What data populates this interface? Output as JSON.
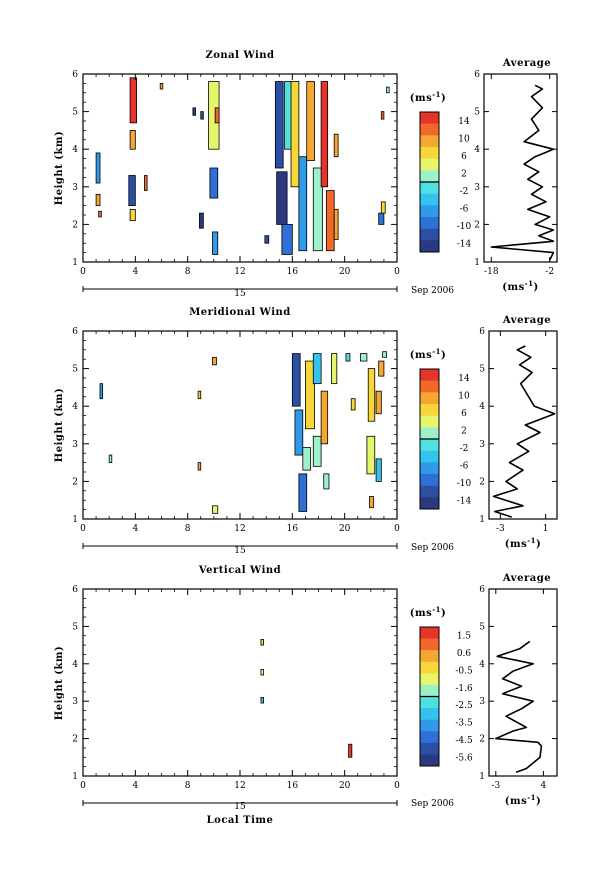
{
  "chart_data": [
    {
      "type": "heatmap",
      "title": "Zonal Wind",
      "ylabel": "Height (km)",
      "xlabel": "",
      "xlim": [
        0,
        24
      ],
      "ylim": [
        1,
        6
      ],
      "xticks": [
        "0",
        "4",
        "8",
        "12",
        "16",
        "20",
        "0"
      ],
      "yticks": [
        "1",
        "2",
        "3",
        "4",
        "5",
        "6"
      ],
      "date_label": "15",
      "month_label": "Sep 2006",
      "colorbar": {
        "unit": "(ms",
        "unit_sup": "-1",
        "ticks": [
          "14",
          "10",
          "6",
          "2",
          "-2",
          "-6",
          "-10",
          "-14"
        ],
        "range": [
          -16,
          16
        ]
      },
      "average_panel": {
        "title": "Average",
        "xlabel": "(ms",
        "xlabel_sup": "-1",
        "xticks": [
          "-18",
          "-2"
        ],
        "xlim": [
          -20,
          0
        ],
        "profile": [
          {
            "h": 1.05,
            "v": -2
          },
          {
            "h": 1.25,
            "v": -1
          },
          {
            "h": 1.4,
            "v": -18
          },
          {
            "h": 1.55,
            "v": -1
          },
          {
            "h": 1.7,
            "v": -5
          },
          {
            "h": 1.85,
            "v": -1
          },
          {
            "h": 2.0,
            "v": -6
          },
          {
            "h": 2.2,
            "v": -2
          },
          {
            "h": 2.4,
            "v": -8
          },
          {
            "h": 2.6,
            "v": -3
          },
          {
            "h": 2.8,
            "v": -7
          },
          {
            "h": 3.0,
            "v": -4
          },
          {
            "h": 3.2,
            "v": -8
          },
          {
            "h": 3.4,
            "v": -5
          },
          {
            "h": 3.6,
            "v": -9
          },
          {
            "h": 3.8,
            "v": -6
          },
          {
            "h": 4.0,
            "v": -1
          },
          {
            "h": 4.2,
            "v": -9
          },
          {
            "h": 4.5,
            "v": -5
          },
          {
            "h": 4.8,
            "v": -7
          },
          {
            "h": 5.1,
            "v": -4
          },
          {
            "h": 5.4,
            "v": -7
          },
          {
            "h": 5.6,
            "v": -4
          },
          {
            "h": 5.7,
            "v": -6
          }
        ]
      },
      "cells": [
        {
          "x": 1.0,
          "y": 3.1,
          "w": 0.3,
          "h": 0.8,
          "v": -6
        },
        {
          "x": 1.0,
          "y": 2.5,
          "w": 0.3,
          "h": 0.3,
          "v": 8
        },
        {
          "x": 1.2,
          "y": 2.2,
          "w": 0.2,
          "h": 0.15,
          "v": 12
        },
        {
          "x": 3.6,
          "y": 4.7,
          "w": 0.5,
          "h": 1.2,
          "v": 14
        },
        {
          "x": 3.6,
          "y": 4.0,
          "w": 0.4,
          "h": 0.5,
          "v": 10
        },
        {
          "x": 3.5,
          "y": 2.5,
          "w": 0.5,
          "h": 0.8,
          "v": -12
        },
        {
          "x": 3.6,
          "y": 2.1,
          "w": 0.4,
          "h": 0.3,
          "v": 6
        },
        {
          "x": 4.7,
          "y": 2.9,
          "w": 0.2,
          "h": 0.4,
          "v": 12
        },
        {
          "x": 5.9,
          "y": 5.6,
          "w": 0.2,
          "h": 0.15,
          "v": 8
        },
        {
          "x": 8.4,
          "y": 4.9,
          "w": 0.2,
          "h": 0.2,
          "v": -14
        },
        {
          "x": 9.0,
          "y": 4.8,
          "w": 0.2,
          "h": 0.2,
          "v": -12
        },
        {
          "x": 9.6,
          "y": 4.0,
          "w": 0.8,
          "h": 1.8,
          "v": 4
        },
        {
          "x": 9.7,
          "y": 2.7,
          "w": 0.6,
          "h": 0.8,
          "v": -10
        },
        {
          "x": 8.9,
          "y": 1.9,
          "w": 0.3,
          "h": 0.4,
          "v": -14
        },
        {
          "x": 9.9,
          "y": 1.2,
          "w": 0.4,
          "h": 0.6,
          "v": -8
        },
        {
          "x": 10.1,
          "y": 4.7,
          "w": 0.3,
          "h": 0.4,
          "v": 12
        },
        {
          "x": 13.9,
          "y": 1.5,
          "w": 0.3,
          "h": 0.2,
          "v": -12
        },
        {
          "x": 14.7,
          "y": 3.5,
          "w": 0.6,
          "h": 2.3,
          "v": -12
        },
        {
          "x": 14.8,
          "y": 2.0,
          "w": 0.8,
          "h": 1.4,
          "v": -14
        },
        {
          "x": 15.2,
          "y": 1.2,
          "w": 0.8,
          "h": 0.8,
          "v": -10
        },
        {
          "x": 15.4,
          "y": 4.0,
          "w": 0.6,
          "h": 1.8,
          "v": -2
        },
        {
          "x": 15.9,
          "y": 3.0,
          "w": 0.6,
          "h": 2.8,
          "v": 6
        },
        {
          "x": 16.5,
          "y": 1.3,
          "w": 0.6,
          "h": 2.5,
          "v": -6
        },
        {
          "x": 17.1,
          "y": 3.7,
          "w": 0.6,
          "h": 2.1,
          "v": 10
        },
        {
          "x": 17.6,
          "y": 1.3,
          "w": 0.7,
          "h": 2.2,
          "v": 2
        },
        {
          "x": 18.2,
          "y": 3.0,
          "w": 0.5,
          "h": 2.8,
          "v": 14
        },
        {
          "x": 18.6,
          "y": 1.3,
          "w": 0.6,
          "h": 1.6,
          "v": 12
        },
        {
          "x": 19.2,
          "y": 3.8,
          "w": 0.3,
          "h": 0.6,
          "v": 8
        },
        {
          "x": 19.2,
          "y": 1.6,
          "w": 0.3,
          "h": 0.8,
          "v": 10
        },
        {
          "x": 22.6,
          "y": 2.0,
          "w": 0.4,
          "h": 0.3,
          "v": -10
        },
        {
          "x": 22.8,
          "y": 2.3,
          "w": 0.3,
          "h": 0.3,
          "v": 6
        },
        {
          "x": 22.8,
          "y": 4.8,
          "w": 0.2,
          "h": 0.2,
          "v": 12
        },
        {
          "x": 23.2,
          "y": 5.5,
          "w": 0.2,
          "h": 0.15,
          "v": 2
        }
      ]
    },
    {
      "type": "heatmap",
      "title": "Meridional Wind",
      "ylabel": "Height (km)",
      "xlabel": "",
      "xlim": [
        0,
        24
      ],
      "ylim": [
        1,
        6
      ],
      "xticks": [
        "0",
        "4",
        "8",
        "12",
        "16",
        "20",
        "0"
      ],
      "yticks": [
        "1",
        "2",
        "3",
        "4",
        "5",
        "6"
      ],
      "date_label": "15",
      "month_label": "Sep 2006",
      "colorbar": {
        "unit": "(ms",
        "unit_sup": "-1",
        "ticks": [
          "14",
          "10",
          "6",
          "2",
          "-2",
          "-6",
          "-10",
          "-14"
        ],
        "range": [
          -16,
          16
        ]
      },
      "average_panel": {
        "title": "Average",
        "xlabel": "(ms",
        "xlabel_sup": "-1",
        "xticks": [
          "-3",
          "1"
        ],
        "xlim": [
          -4,
          2
        ],
        "profile": [
          {
            "h": 1.05,
            "v": -2
          },
          {
            "h": 1.2,
            "v": -3.5
          },
          {
            "h": 1.35,
            "v": -1
          },
          {
            "h": 1.6,
            "v": -3.6
          },
          {
            "h": 1.8,
            "v": -1.5
          },
          {
            "h": 2.0,
            "v": -2.5
          },
          {
            "h": 2.3,
            "v": -1.0
          },
          {
            "h": 2.5,
            "v": -2.2
          },
          {
            "h": 2.8,
            "v": -0.5
          },
          {
            "h": 3.0,
            "v": -1.5
          },
          {
            "h": 3.3,
            "v": 0.5
          },
          {
            "h": 3.5,
            "v": -0.8
          },
          {
            "h": 3.8,
            "v": 1.8
          },
          {
            "h": 4.0,
            "v": 0.0
          },
          {
            "h": 4.3,
            "v": -0.6
          },
          {
            "h": 4.6,
            "v": -1.2
          },
          {
            "h": 4.9,
            "v": -0.2
          },
          {
            "h": 5.1,
            "v": -1.3
          },
          {
            "h": 5.3,
            "v": -0.3
          },
          {
            "h": 5.5,
            "v": -1.5
          },
          {
            "h": 5.6,
            "v": -0.8
          }
        ]
      },
      "cells": [
        {
          "x": 1.3,
          "y": 4.2,
          "w": 0.2,
          "h": 0.4,
          "v": -8
        },
        {
          "x": 2.0,
          "y": 2.5,
          "w": 0.2,
          "h": 0.2,
          "v": 2
        },
        {
          "x": 8.8,
          "y": 4.2,
          "w": 0.2,
          "h": 0.2,
          "v": 6
        },
        {
          "x": 8.8,
          "y": 2.3,
          "w": 0.2,
          "h": 0.2,
          "v": 8
        },
        {
          "x": 9.9,
          "y": 5.1,
          "w": 0.3,
          "h": 0.2,
          "v": 10
        },
        {
          "x": 9.9,
          "y": 1.15,
          "w": 0.4,
          "h": 0.2,
          "v": 4
        },
        {
          "x": 16.0,
          "y": 4.0,
          "w": 0.6,
          "h": 1.4,
          "v": -12
        },
        {
          "x": 16.2,
          "y": 2.7,
          "w": 0.6,
          "h": 1.2,
          "v": -6
        },
        {
          "x": 16.5,
          "y": 1.2,
          "w": 0.6,
          "h": 1.0,
          "v": -10
        },
        {
          "x": 16.8,
          "y": 2.3,
          "w": 0.6,
          "h": 0.6,
          "v": 2
        },
        {
          "x": 17.0,
          "y": 3.4,
          "w": 0.7,
          "h": 1.8,
          "v": 6
        },
        {
          "x": 17.6,
          "y": 4.6,
          "w": 0.6,
          "h": 0.8,
          "v": -4
        },
        {
          "x": 17.6,
          "y": 2.4,
          "w": 0.6,
          "h": 0.8,
          "v": 2
        },
        {
          "x": 18.2,
          "y": 3.0,
          "w": 0.5,
          "h": 1.4,
          "v": 8
        },
        {
          "x": 18.4,
          "y": 1.8,
          "w": 0.4,
          "h": 0.4,
          "v": 0
        },
        {
          "x": 19.0,
          "y": 4.6,
          "w": 0.4,
          "h": 0.8,
          "v": 4
        },
        {
          "x": 20.1,
          "y": 5.2,
          "w": 0.3,
          "h": 0.2,
          "v": -2
        },
        {
          "x": 20.5,
          "y": 3.9,
          "w": 0.3,
          "h": 0.3,
          "v": 6
        },
        {
          "x": 21.2,
          "y": 5.2,
          "w": 0.5,
          "h": 0.2,
          "v": 2
        },
        {
          "x": 21.7,
          "y": 2.2,
          "w": 0.6,
          "h": 1.0,
          "v": 4
        },
        {
          "x": 21.8,
          "y": 3.6,
          "w": 0.5,
          "h": 1.4,
          "v": 6
        },
        {
          "x": 21.9,
          "y": 1.3,
          "w": 0.3,
          "h": 0.3,
          "v": 8
        },
        {
          "x": 22.4,
          "y": 3.8,
          "w": 0.4,
          "h": 0.6,
          "v": 10
        },
        {
          "x": 22.4,
          "y": 2.0,
          "w": 0.4,
          "h": 0.6,
          "v": -4
        },
        {
          "x": 22.6,
          "y": 4.8,
          "w": 0.4,
          "h": 0.4,
          "v": 8
        },
        {
          "x": 22.9,
          "y": 5.3,
          "w": 0.3,
          "h": 0.15,
          "v": 0
        }
      ]
    },
    {
      "type": "heatmap",
      "title": "Vertical Wind",
      "ylabel": "Height (km)",
      "xlabel": "Local Time",
      "xlim": [
        0,
        24
      ],
      "ylim": [
        1,
        6
      ],
      "xticks": [
        "0",
        "4",
        "8",
        "12",
        "16",
        "20",
        "0"
      ],
      "yticks": [
        "1",
        "2",
        "3",
        "4",
        "5",
        "6"
      ],
      "date_label": "15",
      "month_label": "Sep 2006",
      "colorbar": {
        "unit": "(ms",
        "unit_sup": "-1",
        "ticks": [
          "1.5",
          "0.6",
          "-0.5",
          "-1.6",
          "-2.5",
          "-3.5",
          "-4.5",
          "-5.6"
        ],
        "range": [
          -6.5,
          2.4
        ]
      },
      "average_panel": {
        "title": "Average",
        "xlabel": "(ms",
        "xlabel_sup": "-1",
        "xticks": [
          "-3",
          "4"
        ],
        "xlim": [
          -4,
          6
        ],
        "profile": [
          {
            "h": 1.1,
            "v": 0.0
          },
          {
            "h": 1.2,
            "v": 1.5
          },
          {
            "h": 1.5,
            "v": 3.5
          },
          {
            "h": 1.8,
            "v": 3.7
          },
          {
            "h": 1.9,
            "v": 3.2
          },
          {
            "h": 2.0,
            "v": -3.0
          },
          {
            "h": 2.2,
            "v": -0.5
          },
          {
            "h": 2.3,
            "v": 1.5
          },
          {
            "h": 2.6,
            "v": -1.5
          },
          {
            "h": 2.8,
            "v": 0.8
          },
          {
            "h": 3.0,
            "v": 2.5
          },
          {
            "h": 3.2,
            "v": -2.0
          },
          {
            "h": 3.4,
            "v": 0.8
          },
          {
            "h": 3.6,
            "v": -2.0
          },
          {
            "h": 3.8,
            "v": -0.5
          },
          {
            "h": 4.0,
            "v": 2.5
          },
          {
            "h": 4.2,
            "v": -2.8
          },
          {
            "h": 4.4,
            "v": 0.5
          },
          {
            "h": 4.6,
            "v": 2.0
          }
        ]
      },
      "cells": [
        {
          "x": 13.6,
          "y": 4.5,
          "w": 0.2,
          "h": 0.15,
          "v": -0.5
        },
        {
          "x": 13.6,
          "y": 3.7,
          "w": 0.2,
          "h": 0.15,
          "v": -0.8
        },
        {
          "x": 13.6,
          "y": 2.95,
          "w": 0.2,
          "h": 0.15,
          "v": -2.8
        },
        {
          "x": 20.3,
          "y": 1.5,
          "w": 0.25,
          "h": 0.35,
          "v": 1.8
        }
      ]
    }
  ]
}
